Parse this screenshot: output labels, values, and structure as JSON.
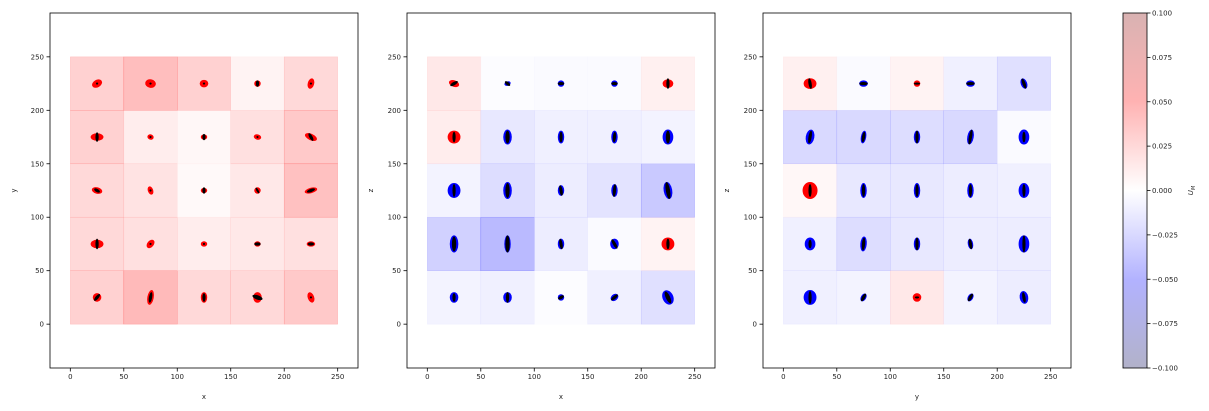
{
  "chart_data": {
    "type": "heatmap",
    "colormap": "seismic",
    "alpha": 0.3,
    "panels": [
      {
        "xlabel": "x",
        "ylabel": "y",
        "xlim": [
          -19,
          269
        ],
        "ylim": [
          -41,
          291
        ],
        "xticks": [
          0,
          50,
          100,
          150,
          200,
          250
        ],
        "yticks": [
          0,
          50,
          100,
          150,
          200,
          250
        ],
        "x_edges": [
          0,
          50,
          100,
          150,
          200,
          250
        ],
        "y_edges": [
          0,
          50,
          100,
          150,
          200,
          250
        ],
        "values": [
          [
            0.03,
            0.045,
            0.025,
            0.025,
            0.035
          ],
          [
            0.025,
            0.02,
            0.012,
            0.015,
            0.02
          ],
          [
            0.025,
            0.018,
            0.004,
            0.015,
            0.04
          ],
          [
            0.03,
            0.012,
            0.005,
            0.02,
            0.035
          ],
          [
            0.03,
            0.042,
            0.03,
            0.008,
            0.025
          ]
        ],
        "ellipses": [
          [
            [
              4,
              4,
              -40
            ],
            [
              3,
              7,
              -10
            ],
            [
              3,
              5,
              0
            ],
            [
              4,
              5,
              0
            ],
            [
              3,
              5,
              20
            ]
          ],
          [
            [
              6,
              4,
              0
            ],
            [
              3,
              4.5,
              -40
            ],
            [
              3,
              2.5,
              0
            ],
            [
              3,
              2.5,
              0
            ],
            [
              4,
              2.5,
              0
            ]
          ],
          [
            [
              5,
              3,
              -15
            ],
            [
              2.5,
              4,
              20
            ],
            [
              3,
              2.5,
              0
            ],
            [
              3,
              3,
              0
            ],
            [
              6,
              2.5,
              15
            ]
          ],
          [
            [
              6,
              3.5,
              0
            ],
            [
              3,
              2.5,
              -20
            ],
            [
              3,
              2.5,
              0
            ],
            [
              3.5,
              2.5,
              -15
            ],
            [
              6,
              3,
              -25
            ]
          ],
          [
            [
              5,
              3.5,
              30
            ],
            [
              5,
              4,
              -10
            ],
            [
              4,
              3.5,
              0
            ],
            [
              3,
              3,
              0
            ],
            [
              3,
              5,
              -15
            ]
          ]
        ],
        "ellipse_colors": [
          [
            "red",
            "red",
            "red",
            "red",
            "red"
          ],
          [
            "red",
            "red",
            "red",
            "red",
            "red"
          ],
          [
            "red",
            "red",
            "red",
            "red",
            "red"
          ],
          [
            "red",
            "red",
            "red",
            "red",
            "red"
          ],
          [
            "red",
            "red",
            "red",
            "red",
            "red"
          ]
        ],
        "inner_ellipses": [
          [
            [
              1.5,
              4,
              -40
            ],
            [
              1.5,
              5,
              -10
            ],
            [
              1.5,
              4,
              0
            ],
            [
              2,
              5,
              70
            ],
            [
              1,
              1,
              0
            ]
          ],
          [
            [
              1.5,
              5,
              0
            ],
            [
              1,
              1,
              0
            ],
            [
              1,
              1,
              0
            ],
            [
              1.5,
              3,
              90
            ],
            [
              1.5,
              3,
              90
            ]
          ],
          [
            [
              1.5,
              3,
              60
            ],
            [
              1,
              1,
              0
            ],
            [
              1.5,
              3,
              0
            ],
            [
              1,
              3,
              30
            ],
            [
              1.5,
              4,
              -70
            ]
          ],
          [
            [
              1.5,
              4.5,
              0
            ],
            [
              1,
              1,
              0
            ],
            [
              1.5,
              3,
              0
            ],
            [
              1,
              1,
              0
            ],
            [
              1.5,
              4,
              30
            ]
          ],
          [
            [
              1,
              1,
              0
            ],
            [
              1,
              1,
              0
            ],
            [
              1,
              1,
              0
            ],
            [
              1.5,
              3,
              0
            ],
            [
              1,
              1,
              0
            ]
          ]
        ],
        "inner_color": "black"
      },
      {
        "xlabel": "x",
        "ylabel": "z",
        "xlim": [
          -19,
          269
        ],
        "ylim": [
          -41,
          291
        ],
        "xticks": [
          0,
          50,
          100,
          150,
          200,
          250
        ],
        "yticks": [
          0,
          50,
          100,
          150,
          200,
          250
        ],
        "x_edges": [
          0,
          50,
          100,
          150,
          200,
          250
        ],
        "y_edges": [
          0,
          50,
          100,
          150,
          200,
          250
        ],
        "values": [
          [
            -0.008,
            -0.01,
            -0.002,
            -0.01,
            -0.02
          ],
          [
            -0.03,
            -0.045,
            -0.012,
            -0.003,
            0.008
          ],
          [
            -0.008,
            -0.022,
            -0.012,
            -0.018,
            -0.035
          ],
          [
            0.012,
            -0.015,
            -0.01,
            -0.01,
            -0.008
          ],
          [
            0.015,
            -0.002,
            -0.003,
            -0.003,
            0.01
          ]
        ],
        "ellipses": [
          [
            [
              4,
              5,
              0
            ],
            [
              4,
              5,
              0
            ],
            [
              3,
              3,
              0
            ],
            [
              3,
              4,
              -50
            ],
            [
              5,
              7,
              25
            ]
          ],
          [
            [
              4,
              8,
              0
            ],
            [
              3,
              8,
              0
            ],
            [
              3,
              5,
              0
            ],
            [
              4,
              5,
              0
            ],
            [
              6,
              6,
              0
            ]
          ],
          [
            [
              6,
              7,
              0
            ],
            [
              4,
              8,
              0
            ],
            [
              3,
              5,
              0
            ],
            [
              3,
              6,
              0
            ],
            [
              4,
              8,
              10
            ]
          ],
          [
            [
              6,
              6,
              0
            ],
            [
              4,
              7,
              0
            ],
            [
              3,
              6,
              0
            ],
            [
              3,
              6,
              0
            ],
            [
              5,
              7,
              0
            ]
          ],
          [
            [
              5,
              3,
              -20
            ],
            [
              3,
              2,
              20
            ],
            [
              3,
              3,
              0
            ],
            [
              3,
              3,
              0
            ],
            [
              5,
              4,
              0
            ]
          ]
        ],
        "ellipse_colors": [
          [
            "blue",
            "blue",
            "blue",
            "blue",
            "blue"
          ],
          [
            "blue",
            "blue",
            "blue",
            "blue",
            "red"
          ],
          [
            "blue",
            "blue",
            "blue",
            "blue",
            "blue"
          ],
          [
            "red",
            "blue",
            "blue",
            "blue",
            "blue"
          ],
          [
            "red",
            "blue",
            "blue",
            "blue",
            "red"
          ]
        ],
        "inner_ellipses": [
          [
            [
              1.5,
              4,
              0
            ],
            [
              1.5,
              5,
              0
            ],
            [
              1.5,
              3,
              -60
            ],
            [
              1.5,
              4,
              -50
            ],
            [
              2,
              6,
              25
            ]
          ],
          [
            [
              2,
              7,
              0
            ],
            [
              2,
              8,
              0
            ],
            [
              1.5,
              5,
              10
            ],
            [
              1.5,
              5,
              30
            ],
            [
              1.5,
              5,
              0
            ]
          ],
          [
            [
              1.5,
              6,
              0
            ],
            [
              2,
              7,
              0
            ],
            [
              1.5,
              5,
              10
            ],
            [
              1.5,
              6,
              -5
            ],
            [
              2,
              8,
              10
            ]
          ],
          [
            [
              1.5,
              5,
              0
            ],
            [
              2,
              6,
              0
            ],
            [
              1.5,
              5,
              0
            ],
            [
              1.5,
              5,
              -5
            ],
            [
              2,
              6,
              0
            ]
          ],
          [
            [
              1.5,
              4,
              -60
            ],
            [
              1.5,
              3,
              50
            ],
            [
              1.5,
              3,
              90
            ],
            [
              1.5,
              3,
              90
            ],
            [
              1.5,
              5,
              0
            ]
          ]
        ],
        "inner_color": "black"
      },
      {
        "xlabel": "y",
        "ylabel": "z",
        "xlim": [
          -19,
          269
        ],
        "ylim": [
          -41,
          291
        ],
        "xticks": [
          0,
          50,
          100,
          150,
          200,
          250
        ],
        "yticks": [
          0,
          50,
          100,
          150,
          200,
          250
        ],
        "x_edges": [
          0,
          50,
          100,
          150,
          200,
          250
        ],
        "y_edges": [
          0,
          50,
          100,
          150,
          200,
          250
        ],
        "values": [
          [
            -0.01,
            -0.008,
            0.015,
            -0.008,
            -0.012
          ],
          [
            -0.01,
            -0.022,
            -0.015,
            -0.012,
            -0.012
          ],
          [
            0.005,
            -0.015,
            -0.015,
            -0.012,
            -0.01
          ],
          [
            -0.025,
            -0.025,
            -0.022,
            -0.025,
            -0.003
          ],
          [
            0.01,
            -0.003,
            0.008,
            -0.01,
            -0.02
          ]
        ],
        "ellipses": [
          [
            [
              6,
              7,
              0
            ],
            [
              2.5,
              4,
              -30
            ],
            [
              4,
              4,
              0
            ],
            [
              2.5,
              4,
              -30
            ],
            [
              4,
              6,
              10
            ]
          ],
          [
            [
              5,
              6,
              0
            ],
            [
              3,
              7,
              -5
            ],
            [
              3,
              6,
              0
            ],
            [
              2.5,
              5,
              10
            ],
            [
              5,
              8,
              0
            ]
          ],
          [
            [
              7,
              8,
              0
            ],
            [
              3,
              7,
              0
            ],
            [
              3,
              7,
              0
            ],
            [
              3,
              7,
              0
            ],
            [
              5,
              7,
              0
            ]
          ],
          [
            [
              4,
              7,
              -10
            ],
            [
              2.5,
              6,
              -10
            ],
            [
              3,
              6,
              0
            ],
            [
              3,
              7,
              -10
            ],
            [
              5,
              7,
              0
            ]
          ],
          [
            [
              6,
              5,
              0
            ],
            [
              4,
              3,
              0
            ],
            [
              3,
              3,
              0
            ],
            [
              4,
              3,
              0
            ],
            [
              3,
              5,
              20
            ]
          ]
        ],
        "ellipse_colors": [
          [
            "blue",
            "blue",
            "red",
            "blue",
            "blue"
          ],
          [
            "blue",
            "blue",
            "blue",
            "blue",
            "blue"
          ],
          [
            "red",
            "blue",
            "blue",
            "blue",
            "blue"
          ],
          [
            "blue",
            "blue",
            "blue",
            "blue",
            "blue"
          ],
          [
            "red",
            "blue",
            "red",
            "blue",
            "blue"
          ]
        ],
        "inner_ellipses": [
          [
            [
              1.5,
              6,
              0
            ],
            [
              1.5,
              4,
              -30
            ],
            [
              1,
              2,
              90
            ],
            [
              1.5,
              4,
              -30
            ],
            [
              1.5,
              5,
              10
            ]
          ],
          [
            [
              1.5,
              4,
              0
            ],
            [
              1.5,
              6,
              -5
            ],
            [
              1.5,
              6,
              0
            ],
            [
              1.5,
              5,
              10
            ],
            [
              1.5,
              8,
              0
            ]
          ],
          [
            [
              1.5,
              6,
              0
            ],
            [
              1.5,
              6,
              0
            ],
            [
              1.5,
              6,
              0
            ],
            [
              1.5,
              6,
              0
            ],
            [
              1.5,
              6,
              0
            ]
          ],
          [
            [
              1.5,
              6,
              -10
            ],
            [
              1.5,
              5,
              -10
            ],
            [
              1.5,
              6,
              0
            ],
            [
              1.5,
              7,
              -10
            ],
            [
              1.5,
              5,
              0
            ]
          ],
          [
            [
              1.5,
              5,
              10
            ],
            [
              1.5,
              4,
              90
            ],
            [
              1,
              3,
              90
            ],
            [
              1.5,
              4,
              90
            ],
            [
              1.5,
              5,
              20
            ]
          ]
        ],
        "inner_color": "black"
      }
    ],
    "colorbar": {
      "label": "U",
      "label_subscript": "M",
      "clim": [
        -0.1,
        0.1
      ],
      "ticks": [
        {
          "value": 0.1,
          "label": "0.100"
        },
        {
          "value": 0.075,
          "label": "0.075"
        },
        {
          "value": 0.05,
          "label": "0.050"
        },
        {
          "value": 0.025,
          "label": "0.025"
        },
        {
          "value": 0,
          "label": "0.000"
        },
        {
          "value": -0.025,
          "label": "−0.025"
        },
        {
          "value": -0.05,
          "label": "−0.050"
        },
        {
          "value": -0.075,
          "label": "−0.075"
        },
        {
          "value": -0.1,
          "label": "−0.100"
        }
      ]
    }
  }
}
